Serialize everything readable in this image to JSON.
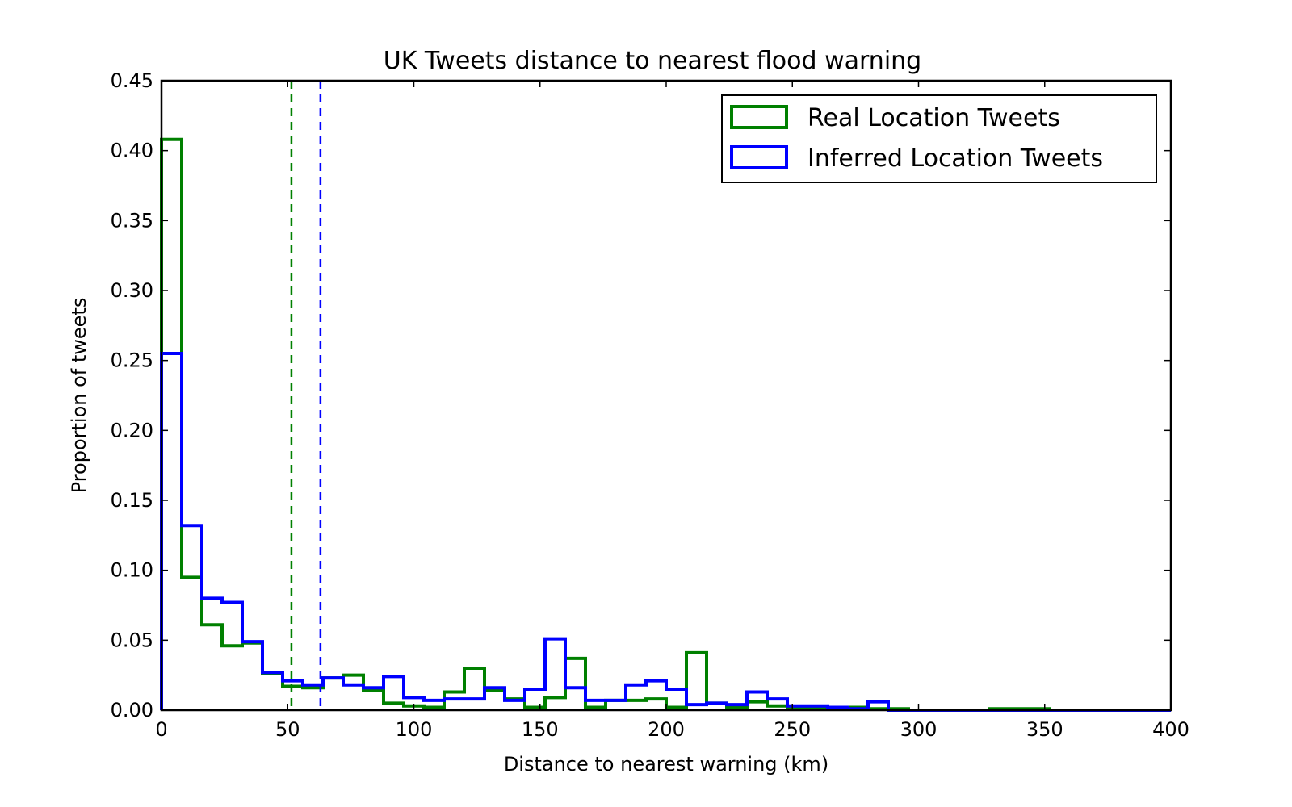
{
  "chart_data": {
    "type": "histogram",
    "title": "UK Tweets distance to nearest flood warning",
    "xlabel": "Distance to nearest warning (km)",
    "ylabel": "Proportion of tweets",
    "xlim": [
      0,
      400
    ],
    "ylim": [
      0,
      0.45
    ],
    "xticks": [
      0,
      50,
      100,
      150,
      200,
      250,
      300,
      350,
      400
    ],
    "yticks": [
      0.0,
      0.05,
      0.1,
      0.15,
      0.2,
      0.25,
      0.3,
      0.35,
      0.4,
      0.45
    ],
    "xtick_labels": [
      "0",
      "50",
      "100",
      "150",
      "200",
      "250",
      "300",
      "350",
      "400"
    ],
    "ytick_labels": [
      "0.00",
      "0.05",
      "0.10",
      "0.15",
      "0.20",
      "0.25",
      "0.30",
      "0.35",
      "0.40",
      "0.45"
    ],
    "bin_width": 8,
    "bin_start": 0,
    "legend_position": "top-right",
    "series": [
      {
        "name": "Real Location Tweets",
        "color": "#008000",
        "mean_line": 51.5,
        "values": [
          0.408,
          0.095,
          0.061,
          0.046,
          0.048,
          0.026,
          0.017,
          0.016,
          0.023,
          0.025,
          0.014,
          0.005,
          0.003,
          0.002,
          0.013,
          0.03,
          0.014,
          0.008,
          0.002,
          0.009,
          0.037,
          0.002,
          0.007,
          0.007,
          0.008,
          0.002,
          0.041,
          0.005,
          0.002,
          0.006,
          0.003,
          0.002,
          0.001,
          0.001,
          0.002,
          0.001,
          0.001,
          0.0,
          0.0,
          0.0,
          0.0,
          0.001,
          0.001,
          0.001,
          0.0,
          0.0,
          0.0,
          0.0,
          0.0,
          0.0
        ]
      },
      {
        "name": "Inferred Location Tweets",
        "color": "#0000ff",
        "mean_line": 63.0,
        "values": [
          0.255,
          0.132,
          0.08,
          0.077,
          0.049,
          0.027,
          0.021,
          0.018,
          0.023,
          0.018,
          0.016,
          0.024,
          0.009,
          0.007,
          0.008,
          0.008,
          0.016,
          0.007,
          0.015,
          0.051,
          0.016,
          0.007,
          0.007,
          0.018,
          0.021,
          0.015,
          0.004,
          0.005,
          0.004,
          0.013,
          0.008,
          0.003,
          0.003,
          0.002,
          0.001,
          0.006,
          0.0,
          0.0,
          0.0,
          0.0,
          0.0,
          0.0,
          0.0,
          0.0,
          0.0,
          0.0,
          0.0,
          0.0,
          0.0,
          0.0
        ]
      }
    ]
  }
}
